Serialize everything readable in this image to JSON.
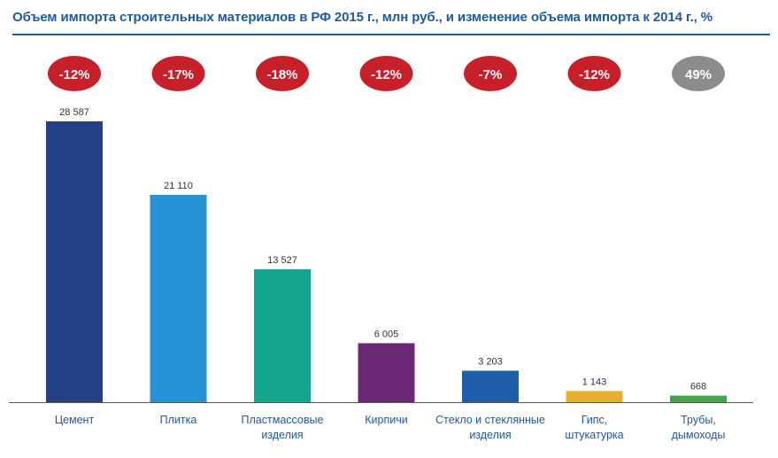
{
  "title": "Объем импорта строительных материалов в РФ 2015 г., млн руб., и изменение объема импорта к 2014 г., %",
  "colors": {
    "title": "#1e5aa0",
    "negative_badge": "#c8202a",
    "positive_badge": "#8c8c8c",
    "category_text": "#1e5aa0"
  },
  "chart_data": {
    "type": "bar",
    "categories": [
      [
        "Цемент"
      ],
      [
        "Плитка"
      ],
      [
        "Пластмассовые",
        "изделия"
      ],
      [
        "Кирпичи"
      ],
      [
        "Стекло и стеклянные",
        "изделия"
      ],
      [
        "Гипс,",
        "штукатурка"
      ],
      [
        "Трубы,",
        "дымоходы"
      ]
    ],
    "values": [
      28587,
      21110,
      13527,
      6005,
      3203,
      1143,
      668
    ],
    "value_labels": [
      "28 587",
      "21 110",
      "13 527",
      "6 005",
      "3 203",
      "1 143",
      "668"
    ],
    "change_labels": [
      "-12%",
      "-17%",
      "-18%",
      "-12%",
      "-7%",
      "-12%",
      "49%"
    ],
    "change_values": [
      -12,
      -17,
      -18,
      -12,
      -7,
      -12,
      49
    ],
    "bar_colors": [
      "#253f86",
      "#2594d6",
      "#13a58e",
      "#6a2875",
      "#1e5eaa",
      "#e8b02a",
      "#3fa845"
    ],
    "ylim": [
      0,
      28587
    ],
    "grid": false,
    "legend": "none"
  }
}
